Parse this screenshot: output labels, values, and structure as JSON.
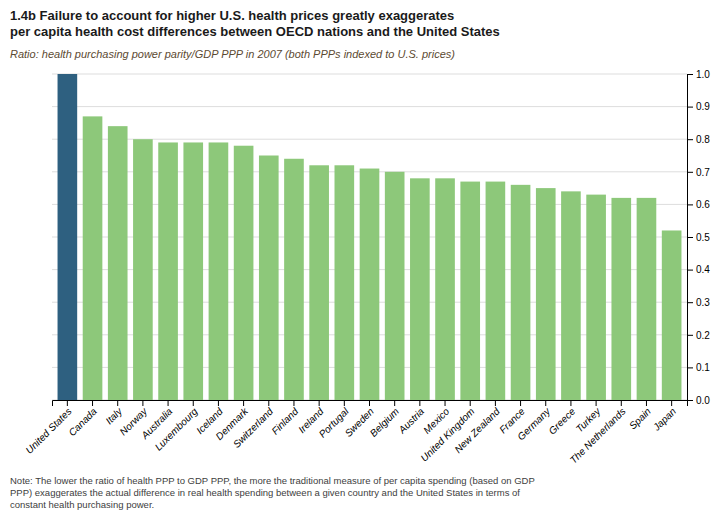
{
  "chart_data": {
    "type": "bar",
    "title": "1.4b Failure to account for higher U.S. health prices greatly exaggerates\nper capita health cost differences between OECD nations and the United States",
    "subtitle": "Ratio: health purchasing power parity/GDP PPP in 2007 (both PPPs indexed to U.S. prices)",
    "annotations": [
      "Note: The lower the ratio of health PPP to GDP PPP, the more the traditional measure of per capita spending (based on GDP\nPPP) exaggerates the actual difference in real health spending between a given country and the United States in terms of\nconstant health purchasing power."
    ],
    "categories": [
      "United States",
      "Canada",
      "Italy",
      "Norway",
      "Australia",
      "Luxembourg",
      "Iceland",
      "Denmark",
      "Switzerland",
      "Finland",
      "Ireland",
      "Portugal",
      "Sweden",
      "Belgium",
      "Austria",
      "Mexico",
      "United Kingdom",
      "New Zealand",
      "France",
      "Germany",
      "Greece",
      "Turkey",
      "The Netherlands",
      "Spain",
      "Japan"
    ],
    "values": [
      1.0,
      0.87,
      0.84,
      0.8,
      0.79,
      0.79,
      0.79,
      0.78,
      0.75,
      0.74,
      0.72,
      0.72,
      0.71,
      0.7,
      0.68,
      0.68,
      0.67,
      0.67,
      0.66,
      0.65,
      0.64,
      0.63,
      0.62,
      0.62,
      0.52
    ],
    "colors": [
      "#2E6080",
      "#8DC87A",
      "#8DC87A",
      "#8DC87A",
      "#8DC87A",
      "#8DC87A",
      "#8DC87A",
      "#8DC87A",
      "#8DC87A",
      "#8DC87A",
      "#8DC87A",
      "#8DC87A",
      "#8DC87A",
      "#8DC87A",
      "#8DC87A",
      "#8DC87A",
      "#8DC87A",
      "#8DC87A",
      "#8DC87A",
      "#8DC87A",
      "#8DC87A",
      "#8DC87A",
      "#8DC87A",
      "#8DC87A",
      "#8DC87A"
    ],
    "ylim": [
      0.0,
      1.0
    ],
    "yticks": [
      {
        "value": 0.0,
        "label": "0.0"
      },
      0.1,
      0.2,
      0.3,
      0.4,
      0.5,
      0.6,
      0.7,
      0.8,
      0.9,
      {
        "value": 1.0,
        "label": "1.0"
      }
    ],
    "grid": true
  }
}
